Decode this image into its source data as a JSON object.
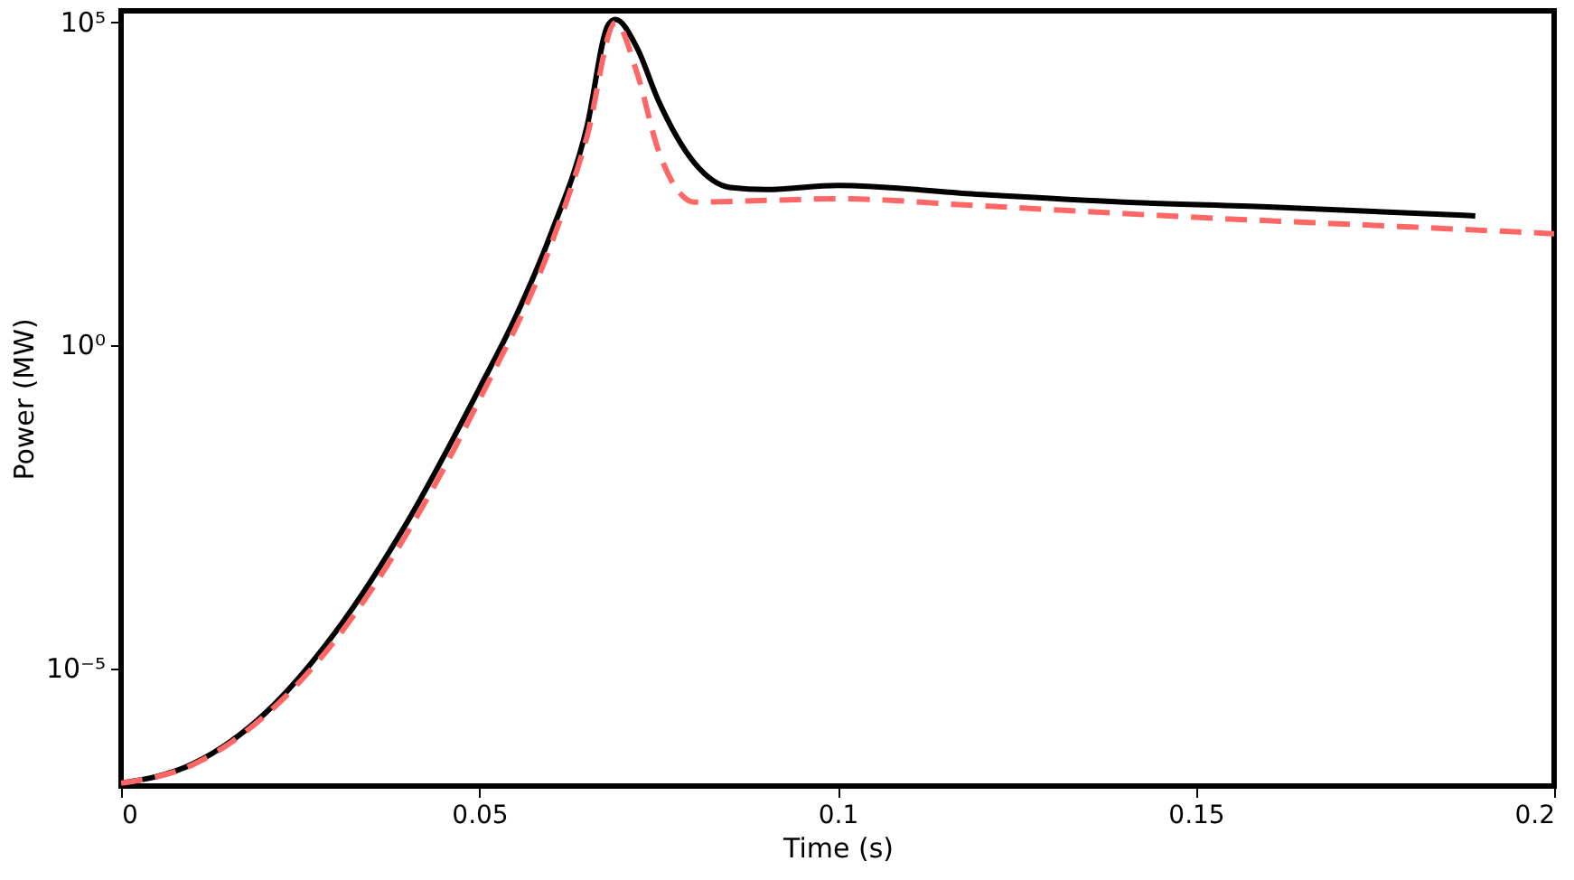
{
  "chart_data": {
    "type": "line",
    "xlabel": "Time (s)",
    "ylabel": "Power (MW)",
    "log": "y",
    "xlim": [
      0,
      0.2
    ],
    "xticks": [
      0,
      0.05,
      0.1,
      0.15,
      0.2
    ],
    "ylim": [
      1.5e-07,
      145000.0
    ],
    "yticks": [
      {
        "value": 1e-05,
        "label": "10⁻⁵"
      },
      {
        "value": 1,
        "label": "10⁰"
      },
      {
        "value": 100000,
        "label": "10⁵"
      }
    ],
    "grid": false,
    "marker": "none",
    "series": [
      {
        "color": "#000000",
        "line_style": "solid",
        "x": [
          0,
          0.01,
          0.02,
          0.03,
          0.04,
          0.05,
          0.055,
          0.06,
          0.065,
          0.068,
          0.069,
          0.072,
          0.075,
          0.08,
          0.085,
          0.09,
          0.1,
          0.12,
          0.14,
          0.16,
          0.189
        ],
        "values": [
          1.66e-07,
          3.3e-07,
          1.95e-06,
          3.7e-05,
          0.00186,
          0.21,
          2.6,
          52,
          2300,
          89000,
          107000,
          39000,
          5900,
          650,
          270,
          250,
          290,
          210,
          160,
          135,
          98
        ]
      },
      {
        "color": "#ff6666",
        "line_style": "dashed",
        "x": [
          0,
          0.01,
          0.02,
          0.03,
          0.04,
          0.05,
          0.06,
          0.065,
          0.069,
          0.072,
          0.075,
          0.078,
          0.08,
          0.09,
          0.1,
          0.12,
          0.15,
          0.18,
          0.2
        ],
        "values": [
          1.66e-07,
          3.2e-07,
          1.8e-06,
          2.8e-05,
          0.00126,
          0.14,
          35,
          1600,
          95000,
          16000,
          1000,
          220,
          160,
          170,
          180,
          140,
          93,
          66,
          52
        ]
      }
    ]
  }
}
